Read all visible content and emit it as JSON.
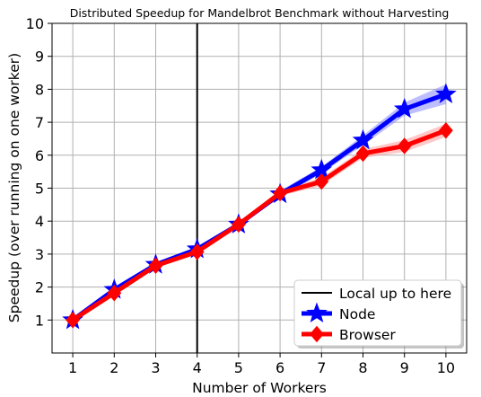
{
  "chart_data": {
    "type": "line",
    "title": "Distributed Speedup for Mandelbrot Benchmark without Harvesting",
    "xlabel": "Number of Workers",
    "ylabel": "Speedup (over running on one worker)",
    "x": [
      1,
      2,
      3,
      4,
      5,
      6,
      7,
      8,
      9,
      10
    ],
    "xlim": [
      0.5,
      10.5
    ],
    "ylim": [
      0,
      10
    ],
    "xticks": [
      "1",
      "2",
      "3",
      "4",
      "5",
      "6",
      "7",
      "8",
      "9",
      "10"
    ],
    "yticks": [
      "1",
      "2",
      "3",
      "4",
      "5",
      "6",
      "7",
      "8",
      "9",
      "10"
    ],
    "grid": true,
    "legend_position": "bottom-right",
    "vline": {
      "x": 4,
      "label": "Local up to here",
      "color": "#000000"
    },
    "series": [
      {
        "name": "Node",
        "marker": "star",
        "color": "#0000ff",
        "band_color": "#8888ff",
        "values": [
          1.0,
          1.92,
          2.68,
          3.15,
          3.9,
          4.82,
          5.55,
          6.45,
          7.4,
          7.85
        ],
        "lower": [
          0.98,
          1.88,
          2.62,
          3.08,
          3.84,
          4.72,
          5.45,
          6.3,
          7.2,
          7.55
        ],
        "upper": [
          1.02,
          1.96,
          2.74,
          3.22,
          3.96,
          4.92,
          5.65,
          6.6,
          7.6,
          8.15
        ]
      },
      {
        "name": "Browser",
        "marker": "diamond",
        "color": "#ff0000",
        "band_color": "#ff9999",
        "values": [
          1.0,
          1.82,
          2.65,
          3.07,
          3.9,
          4.85,
          5.2,
          6.05,
          6.28,
          6.75
        ],
        "lower": [
          0.98,
          1.78,
          2.6,
          3.0,
          3.84,
          4.76,
          5.08,
          5.92,
          6.1,
          6.55
        ],
        "upper": [
          1.02,
          1.86,
          2.7,
          3.14,
          3.96,
          4.94,
          5.32,
          6.18,
          6.46,
          6.95
        ]
      }
    ]
  }
}
